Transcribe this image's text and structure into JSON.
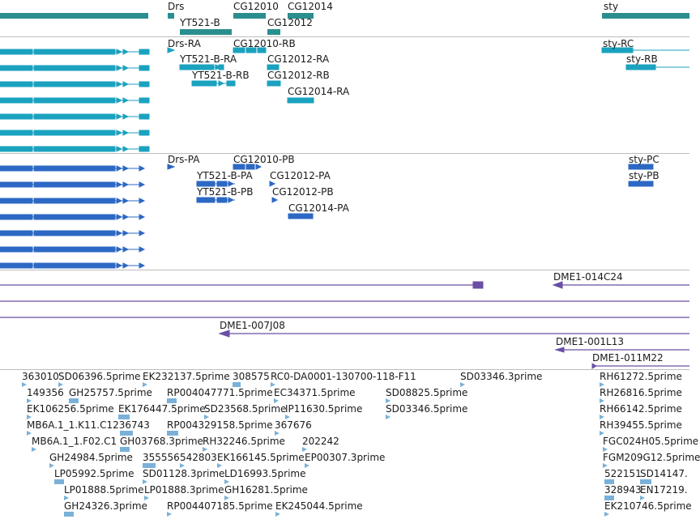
{
  "tracks": {
    "gene_span": {
      "color": "#2b8e8e",
      "labels": [
        "Drs",
        "CG12010",
        "CG12014",
        "YT521-B",
        "CG12012",
        "sty"
      ]
    },
    "transcripts": {
      "color": "#1aa2bf",
      "labels": [
        "Drs-RA",
        "CG12010-RB",
        "YT521-B-RA",
        "CG12012-RA",
        "YT521-B-RB",
        "CG12012-RB",
        "CG12014-RA",
        "sty-RC",
        "sty-RB"
      ]
    },
    "polypeptides": {
      "color": "#2c68c4",
      "labels": [
        "Drs-PA",
        "CG12010-PB",
        "YT521-B-PA",
        "CG12012-PA",
        "YT521-B-PB",
        "CG12012-PB",
        "CG12014-PA",
        "sty-PC",
        "sty-PB"
      ]
    },
    "bac_clones": {
      "color": "#6a4fa5",
      "labels": [
        "DME1-014C24",
        "DME1-007J08",
        "DME1-001L13",
        "DME1-011M22"
      ]
    },
    "est": {
      "color": "#7ab1d8",
      "labels": [
        "363010",
        "SD06396.5prime",
        "EK232137.5prime",
        "308575",
        "RC0-DA0001-130700-118-F11",
        "SD03346.3prime",
        "RH61272.5prime",
        "149356",
        "GH25757.5prime",
        "RP004047771.5prime",
        "EC34371.5prime",
        "SD08825.5prime",
        "RH26816.5prime",
        "EK106256.5prime",
        "EK176447.5prime",
        "SD23568.5prime",
        "IP11630.5prime",
        "SD03346.5prime",
        "RH66142.5prime",
        "MB6A.1_1.K11.C1236743",
        "RP004329158.5prime",
        "367676",
        "RH39455.5prime",
        "MB6A.1_1.F02.C1",
        "GH03768.3prime",
        "RH32246.5prime",
        "202242",
        "FGC024H05.5prime",
        "GH24984.5prime",
        "355556",
        "542803",
        "EK166145.5prime",
        "EP00307.3prime",
        "FGM209G12.5prime",
        "LP05992.5prime",
        "SD01128.3prime",
        "LD16993.5prime",
        "522151",
        "SD14147.",
        "LP01888.5prime",
        "LP01888.3prime",
        "GH16281.5prime",
        "328943",
        "EN17219.",
        "GH24326.3prime",
        "RP004407185.5prime",
        "EK245044.5prime",
        "EK210746.5prime"
      ]
    }
  }
}
